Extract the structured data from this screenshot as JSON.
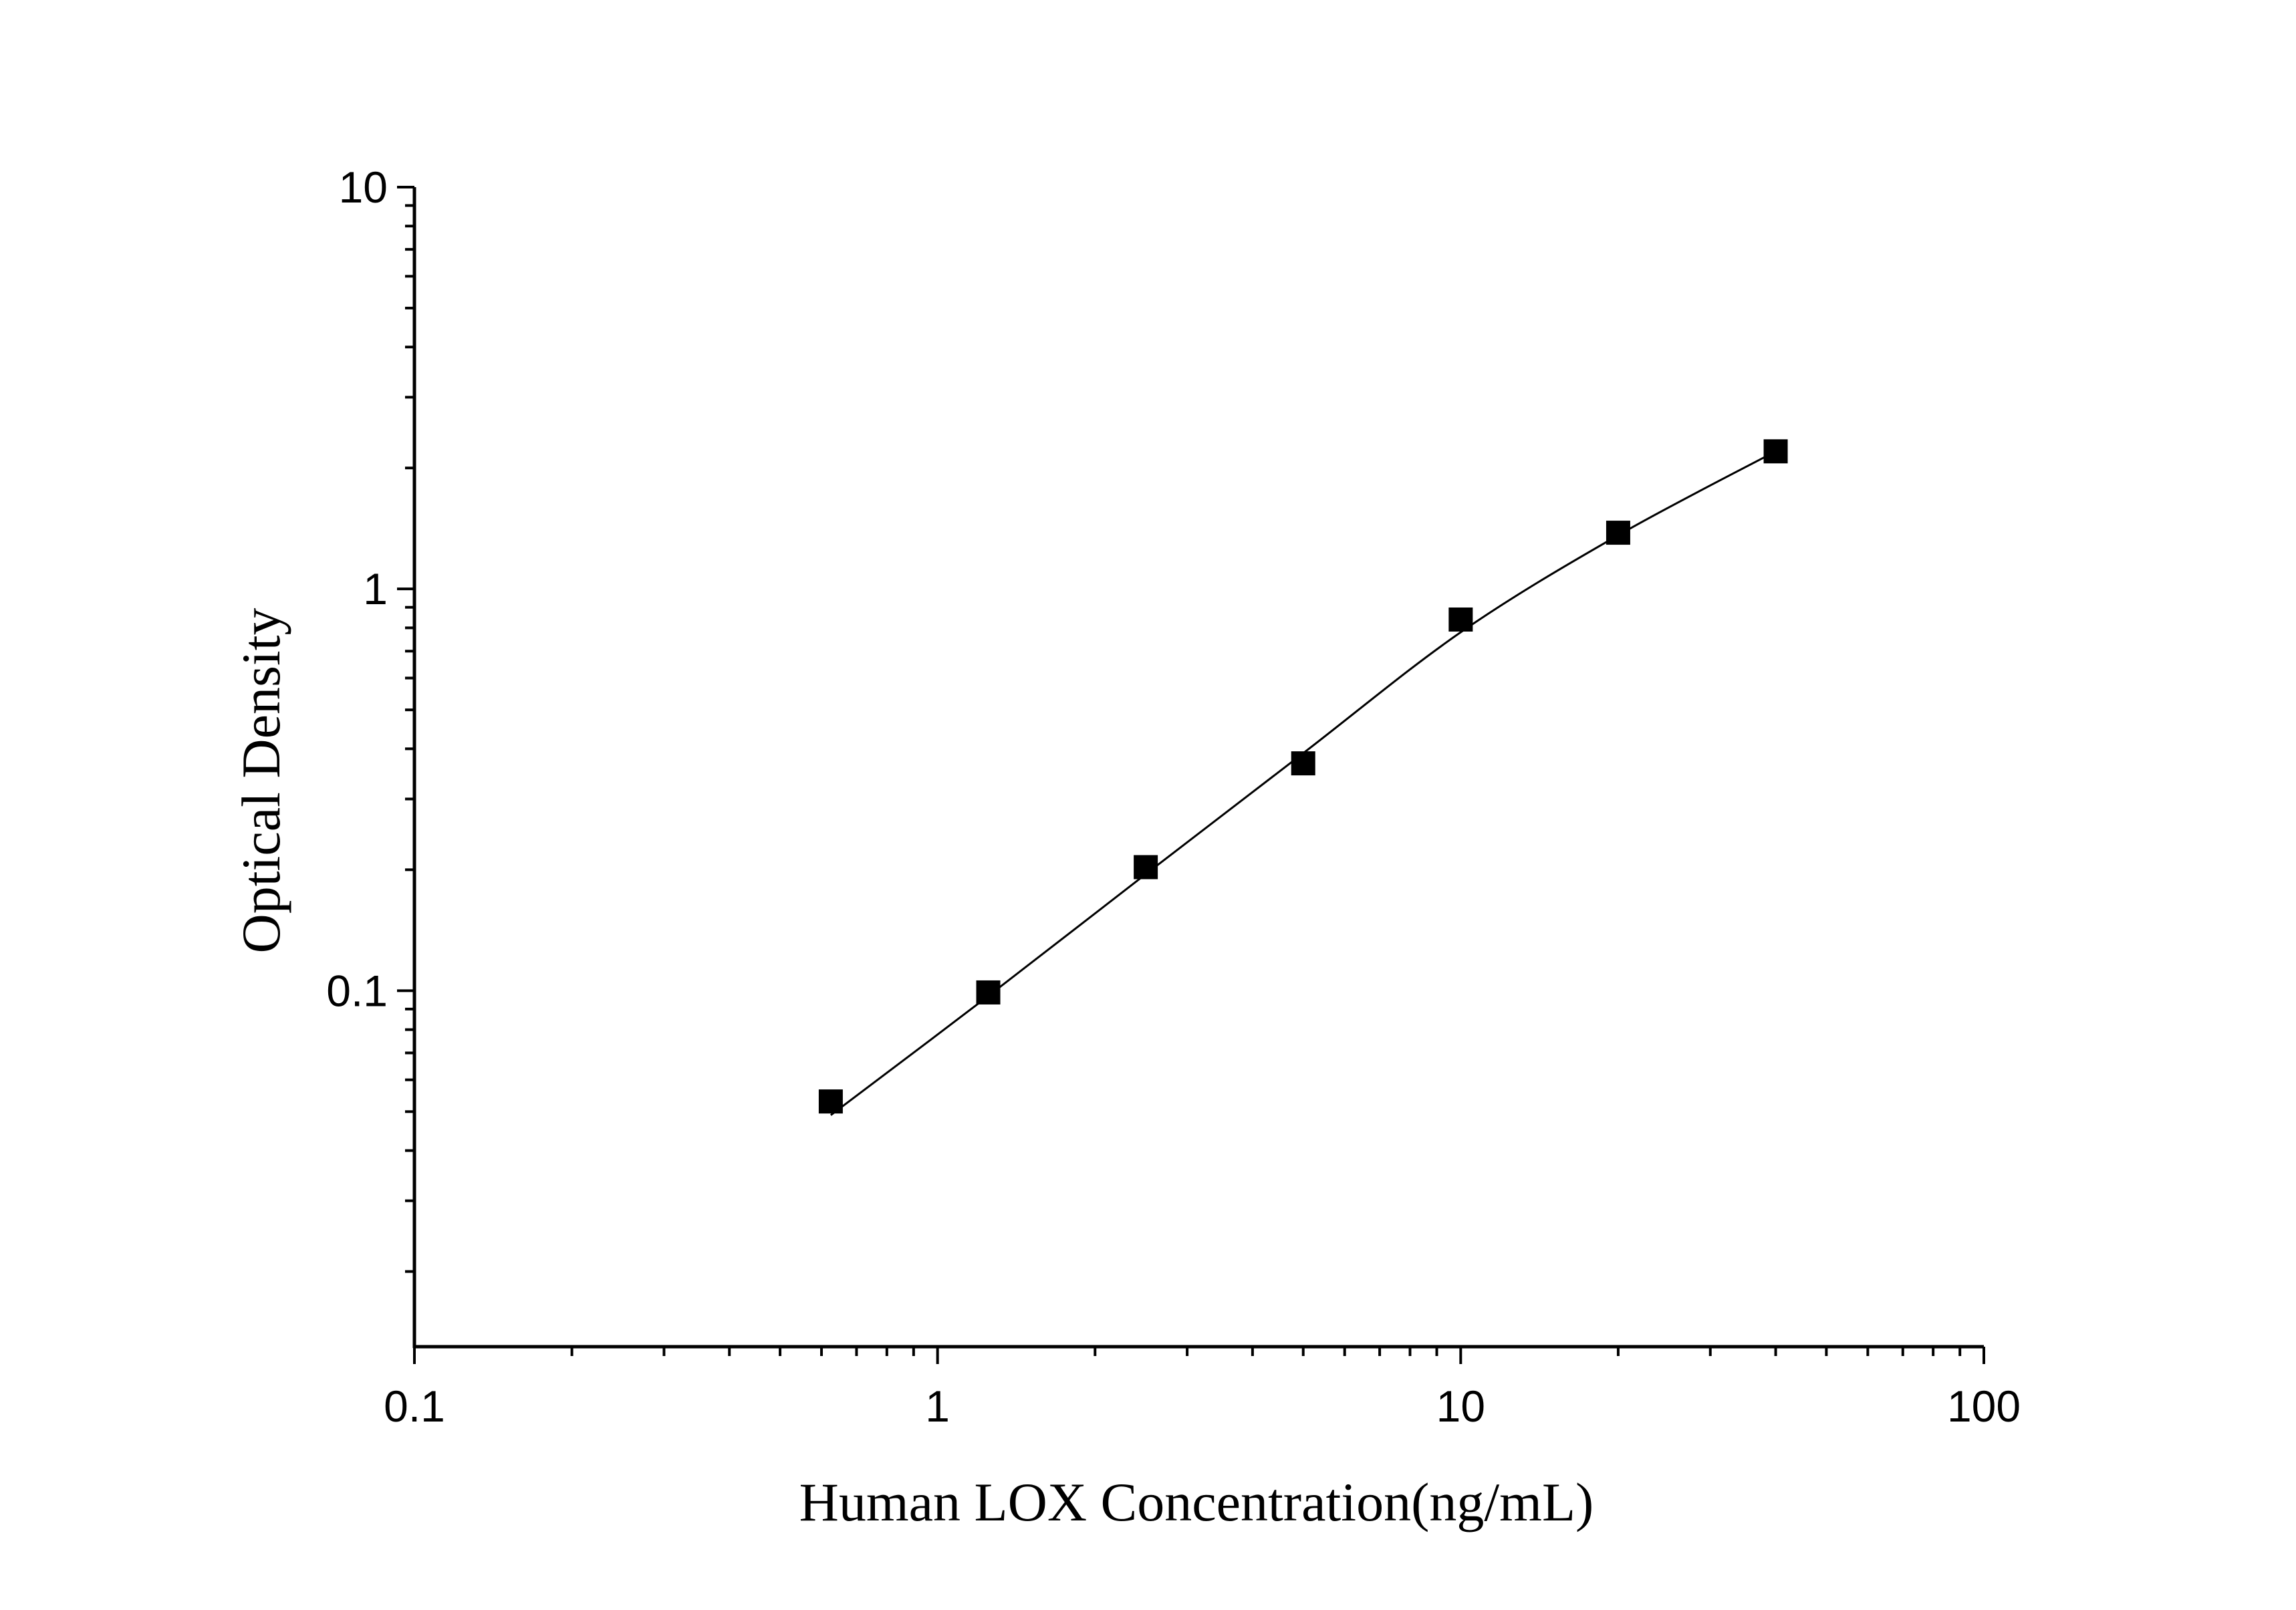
{
  "chart_data": {
    "type": "scatter",
    "title": "",
    "xlabel": "Human LOX Concentration(ng/mL)",
    "ylabel": "Optical Density",
    "x_scale": "log",
    "y_scale": "log",
    "xlim": [
      0.1,
      100
    ],
    "ylim": [
      0.013,
      10
    ],
    "x_ticks": [
      {
        "value": 0.1,
        "label": "0.1"
      },
      {
        "value": 1,
        "label": "1"
      },
      {
        "value": 10,
        "label": "10"
      },
      {
        "value": 100,
        "label": "100"
      }
    ],
    "y_ticks": [
      {
        "value": 0.1,
        "label": "0.1"
      },
      {
        "value": 1,
        "label": "1"
      },
      {
        "value": 10,
        "label": "10"
      }
    ],
    "grid": false,
    "legend": "none",
    "marker": "square",
    "series": [
      {
        "x": [
          0.625,
          1.25,
          2.5,
          5,
          10,
          20,
          40
        ],
        "y": [
          0.053,
          0.099,
          0.203,
          0.368,
          0.839,
          1.38,
          2.2
        ]
      }
    ],
    "fit_curve": {
      "x": [
        0.625,
        1.25,
        2.5,
        5,
        10,
        20,
        40
      ],
      "y": [
        0.049,
        0.097,
        0.195,
        0.39,
        0.78,
        1.36,
        2.2
      ]
    },
    "colors": {
      "marker": "#000000",
      "line": "#000000",
      "axis": "#000000"
    }
  }
}
